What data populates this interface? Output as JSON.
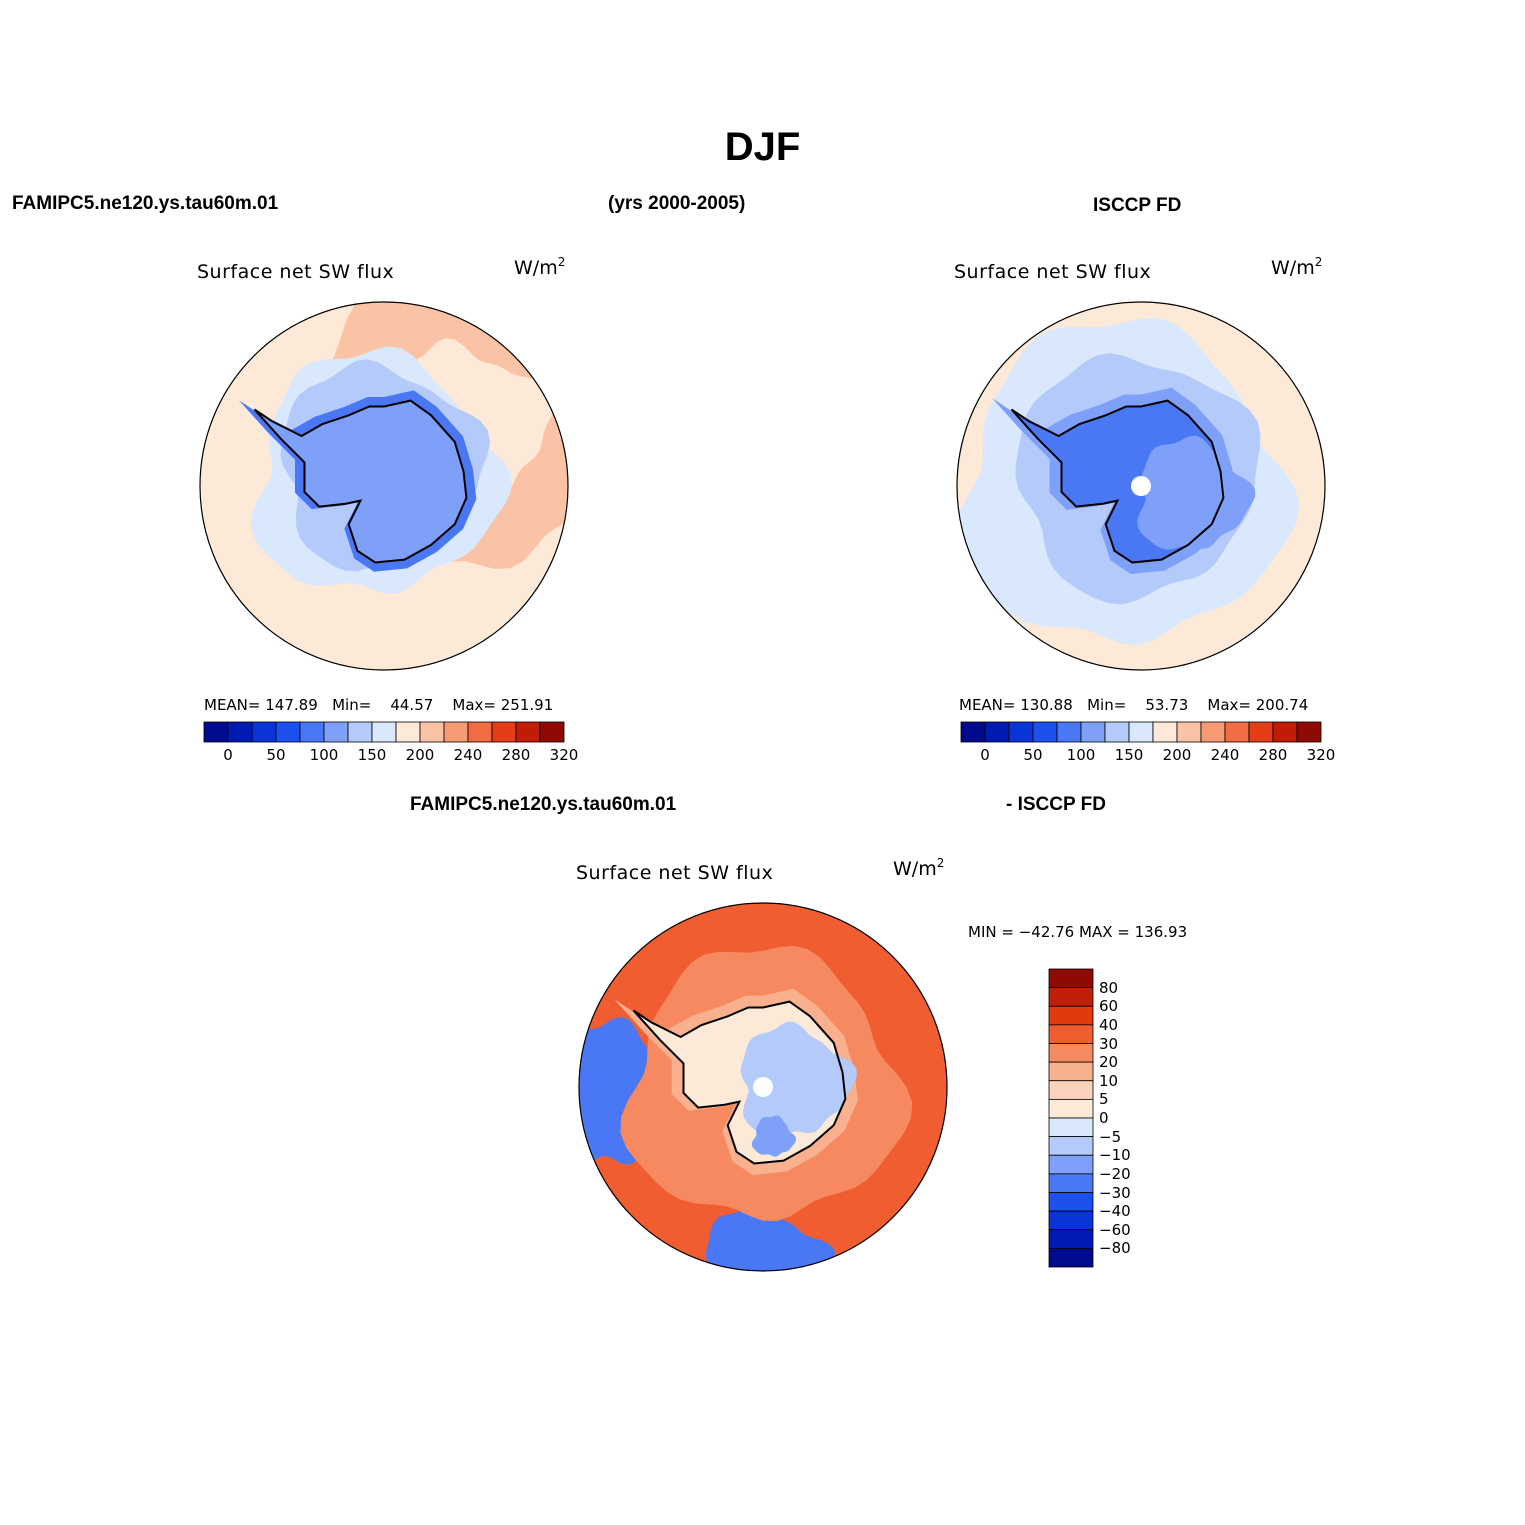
{
  "figure": {
    "title": "DJF",
    "model_name": "FAMIPC5.ne120.ys.tau60m.01",
    "years": "(yrs 2000-2005)",
    "obs_name": "ISCCP FD",
    "diff_model_name": "FAMIPC5.ne120.ys.tau60m.01",
    "diff_obs_name": "- ISCCP FD"
  },
  "colors": {
    "abs_scale": [
      "#000a8c",
      "#001ab4",
      "#0a33d8",
      "#1e50f0",
      "#4a78f5",
      "#7ea0f8",
      "#b4cafa",
      "#d9e8fd",
      "#fde9d8",
      "#fbc3a6",
      "#f79b74",
      "#f26b43",
      "#e43d18",
      "#c21c08",
      "#8e0a02"
    ],
    "diff_scale": [
      "#000a8c",
      "#001ab4",
      "#0a33d8",
      "#1e50f0",
      "#4a78f5",
      "#7ea0f8",
      "#b4cafa",
      "#d9e8fd",
      "#fde9d8",
      "#fbd3bd",
      "#f9b08e",
      "#f6895f",
      "#f05d30",
      "#e23a0e",
      "#c0200a",
      "#8e0a02"
    ]
  },
  "chart_data": [
    {
      "type": "heatmap",
      "title": "Surface net SW flux",
      "units": "W/m",
      "units_sup": "2",
      "subtitle": "FAMIPC5.ne120.ys.tau60m.01",
      "stats": {
        "mean_label": "MEAN=",
        "mean": "147.89",
        "min_label": "Min=",
        "min": "44.57",
        "max_label": "Max=",
        "max": "251.91"
      },
      "colorbar": {
        "orientation": "horizontal",
        "tick_labels": [
          "0",
          "50",
          "100",
          "150",
          "200",
          "240",
          "280",
          "320"
        ]
      },
      "field": {
        "antarctica": 5,
        "coast_ring": 4,
        "near_ring": 6,
        "ocean": 7,
        "outer": 8,
        "pacific_sector": 9
      }
    },
    {
      "type": "heatmap",
      "title": "Surface net SW flux",
      "units": "W/m",
      "units_sup": "2",
      "subtitle": "ISCCP FD",
      "stats": {
        "mean_label": "MEAN=",
        "mean": "130.88",
        "min_label": "Min=",
        "min": "53.73",
        "max_label": "Max=",
        "max": "200.74"
      },
      "colorbar": {
        "orientation": "horizontal",
        "tick_labels": [
          "0",
          "50",
          "100",
          "150",
          "200",
          "240",
          "280",
          "320"
        ]
      },
      "field": {
        "antarctica": 4,
        "east_plateau": 5,
        "coast_ring": 5,
        "near_ring": 6,
        "ocean": 7,
        "outer": 8
      }
    },
    {
      "type": "heatmap",
      "title": "Surface net SW flux",
      "units": "W/m",
      "units_sup": "2",
      "subtitle": "FAMIPC5.ne120.ys.tau60m.01 - ISCCP FD",
      "stats": {
        "min_label": "MIN =",
        "min": "−42.76",
        "max_label": "MAX =",
        "max": "136.93"
      },
      "colorbar": {
        "orientation": "vertical",
        "tick_labels": [
          "80",
          "60",
          "40",
          "30",
          "20",
          "10",
          "5",
          "0",
          "−5",
          "−10",
          "−20",
          "−30",
          "−40",
          "−60",
          "−80"
        ]
      },
      "field": {
        "ocean": 12,
        "outer_ring": 11,
        "coast": 10,
        "west_antarctica": 8,
        "east_antarctica": 6,
        "ross_sea": 5,
        "atlantic_edge": 4
      }
    }
  ]
}
